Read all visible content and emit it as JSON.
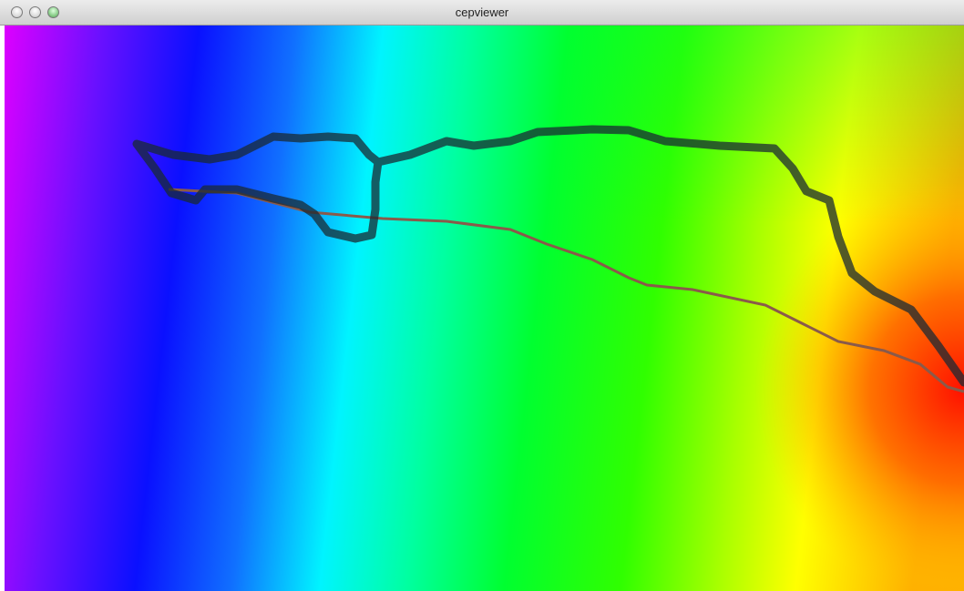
{
  "window": {
    "title": "cepviewer"
  }
}
